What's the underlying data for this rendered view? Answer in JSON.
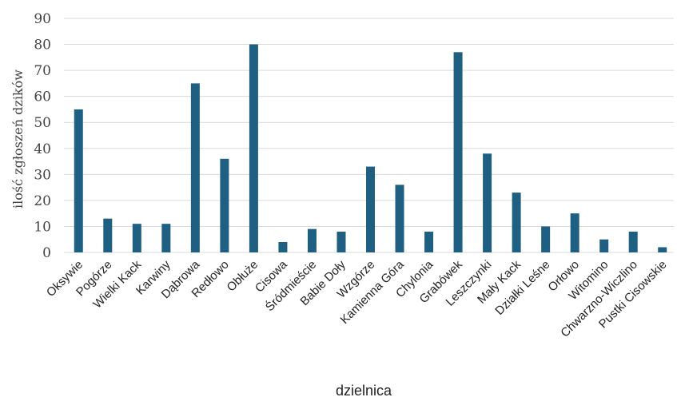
{
  "chart_data": {
    "type": "bar",
    "xlabel": "dzielnica",
    "ylabel": "ilość zgłoszeń dzików",
    "ylim": [
      0,
      90
    ],
    "yticks": [
      0,
      10,
      20,
      30,
      40,
      50,
      60,
      70,
      80,
      90
    ],
    "grid": true,
    "categories": [
      "Oksywie",
      "Pogórze",
      "Wielki Kack",
      "Karwiny",
      "Dąbrowa",
      "Redłowo",
      "Obłuże",
      "Cisowa",
      "Śródmieście",
      "Babie Doły",
      "Wzgórze",
      "Kamienna Góra",
      "Chylonia",
      "Grabówek",
      "Leszczynki",
      "Mały Kack",
      "Działki Leśne",
      "Orłowo",
      "Witomino",
      "Chwarzno-Wiczlino",
      "Pustki Cisowskie"
    ],
    "values": [
      55,
      13,
      11,
      11,
      65,
      36,
      80,
      4,
      9,
      8,
      33,
      26,
      8,
      77,
      38,
      23,
      10,
      15,
      5,
      8,
      2
    ],
    "colors": {
      "bar": "#1f5f82",
      "grid": "#d9d9d9"
    }
  }
}
